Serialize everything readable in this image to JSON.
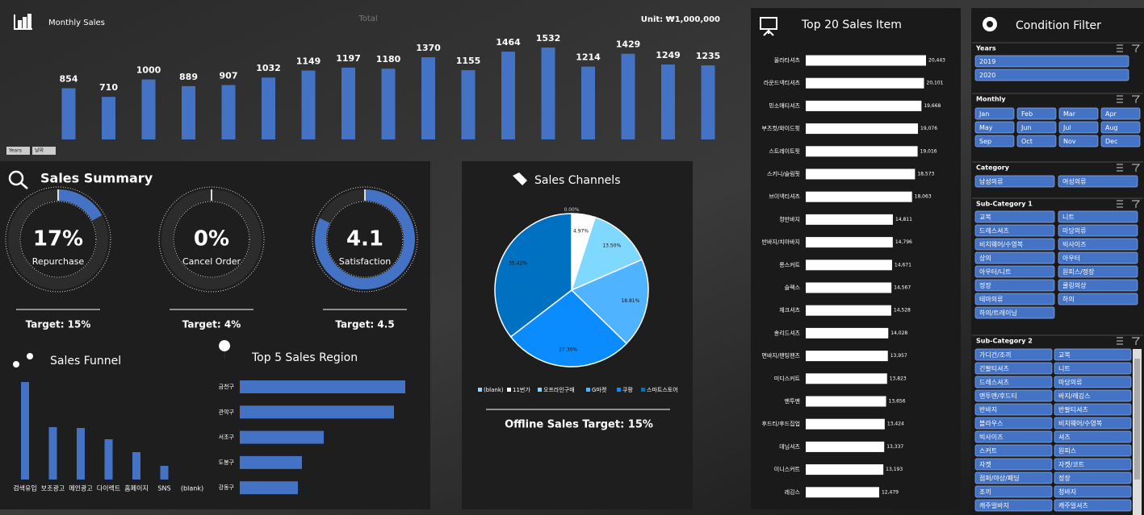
{
  "monthly_sales": {
    "title": "Monthly Sales",
    "subtitle": "Total",
    "unit": "Unit: ₩1,000,000",
    "buttons": [
      "Years",
      "날짜"
    ],
    "color": "#4472c4",
    "values": [
      854,
      710,
      1000,
      889,
      907,
      1032,
      1149,
      1197,
      1180,
      1370,
      1155,
      1464,
      1532,
      1214,
      1429,
      1249,
      1235
    ]
  },
  "sales_summary": {
    "title": "Sales Summary",
    "gauges": [
      {
        "value": 17,
        "label": "17%",
        "name": "Repurchase",
        "range": [
          0,
          100
        ],
        "target": "Target: 15%"
      },
      {
        "value": 0,
        "label": "0%",
        "name": "Cancel Order",
        "range": [
          0,
          100
        ],
        "target": "Target: 4%"
      },
      {
        "value": 4.1,
        "label": "4.1",
        "name": "Satisfaction",
        "range": [
          0,
          5
        ],
        "target": "Target: 4.5"
      }
    ]
  },
  "sales_funnel": {
    "title": "Sales Funnel",
    "categories": [
      "검색유입",
      "보조광고",
      "메인광고",
      "다이렉트",
      "홈페이지",
      "SNS",
      "(blank)"
    ],
    "values": [
      121,
      65,
      64,
      50,
      34,
      17,
      0
    ]
  },
  "top_regions": {
    "title": "Top 5 Sales Region",
    "categories": [
      "금천구",
      "관악구",
      "서초구",
      "도봉구",
      "강동구"
    ],
    "values": [
      205,
      191,
      104,
      77,
      72
    ]
  },
  "sales_channels": {
    "title": "Sales Channels",
    "categories": [
      "(blank)",
      "11번가",
      "오프라인구매",
      "G마켓",
      "쿠팡",
      "스마트스토어"
    ],
    "values": [
      0,
      4.97,
      13.5,
      18.81,
      27.3,
      35.42
    ],
    "value_labels": [
      "0.00%",
      "4.97%",
      "13.50%",
      "18.81%",
      "27.30%",
      "35.42%"
    ],
    "colors": [
      "#9ad0ff",
      "#ffffff",
      "#7fd8ff",
      "#4fb3ff",
      "#0a8cff",
      "#0070c0"
    ],
    "footer": "Offline Sales Target: 15%"
  },
  "top_items": {
    "title": "Top 20 Sales Item",
    "categories": [
      "올라타셔츠",
      "라운드넥티셔츠",
      "민소매티셔츠",
      "부츠컷/와이드핏",
      "스트레이트핏",
      "스키니/슬림핏",
      "브이넥티셔츠",
      "청반바지",
      "반바지/치마바지",
      "롱스커트",
      "슬랙스",
      "체크셔츠",
      "솔리드셔츠",
      "면바지/팬팅팬츠",
      "미디스커트",
      "맨투맨",
      "후드티/후드집업",
      "데님셔츠",
      "미니스커트",
      "레깅스"
    ],
    "values": [
      20443,
      20101,
      19668,
      19076,
      19016,
      18573,
      18063,
      14811,
      14796,
      14671,
      14567,
      14528,
      14028,
      13957,
      13823,
      13656,
      13424,
      13337,
      13193,
      12479
    ],
    "value_labels": [
      "20,443",
      "20,101",
      "19,668",
      "19,076",
      "19,016",
      "18,573",
      "18,063",
      "14,811",
      "14,796",
      "14,671",
      "14,567",
      "14,528",
      "14,028",
      "13,957",
      "13,823",
      "13,656",
      "13,424",
      "13,337",
      "13,193",
      "12,479"
    ]
  },
  "filter": {
    "title": "Condition Filter",
    "sections": [
      {
        "title": "Years",
        "items": [
          "2019",
          "2020"
        ]
      },
      {
        "title": "Monthly",
        "items": [
          "Jan",
          "Feb",
          "Mar",
          "Apr",
          "May",
          "Jun",
          "Jul",
          "Aug",
          "Sep",
          "Oct",
          "Nov",
          "Dec"
        ]
      },
      {
        "title": "Category",
        "items": [
          "남성의류",
          "여성의류"
        ]
      },
      {
        "title": "Sub-Category 1",
        "items": [
          "교복",
          "니트",
          "드레스셔츠",
          "마당의류",
          "비치웨어/수영복",
          "빅사이즈",
          "상의",
          "아우터",
          "아우터/니트",
          "원피스/정장",
          "정장",
          "쿨링의상",
          "테마의류",
          "하의",
          "하의/트레이닝"
        ]
      },
      {
        "title": "Sub-Category 2",
        "items": [
          "가디건/조끼",
          "교복",
          "긴팔티셔츠",
          "니트",
          "드레스셔츠",
          "마당의류",
          "맨투맨/후드티",
          "바지/레깅스",
          "반바지",
          "반팔티셔츠",
          "블라우스",
          "비치웨어/수영복",
          "빅사이즈",
          "셔츠",
          "스커트",
          "원피스",
          "자켓",
          "자켓/코트",
          "점퍼/야상/패딩",
          "정장",
          "조끼",
          "청바지",
          "캐주얼바지",
          "캐주얼셔츠"
        ]
      }
    ]
  }
}
